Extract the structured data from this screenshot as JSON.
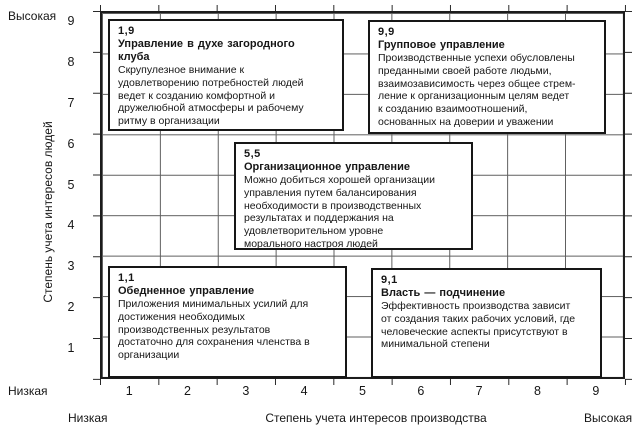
{
  "figure": {
    "type": "managerial-grid",
    "colors": {
      "ink": "#1c1c1c",
      "grid_line": "#5f5f5f",
      "background": "#ffffff"
    },
    "y_axis": {
      "high_label": "Высокая",
      "low_label": "Низкая",
      "title": "Степень учета интересов людей",
      "ticks": [
        "9",
        "8",
        "7",
        "6",
        "5",
        "4",
        "3",
        "2",
        "1"
      ]
    },
    "x_axis": {
      "low_label": "Низкая",
      "high_label": "Высокая",
      "title": "Степень учета интересов производства",
      "ticks": [
        "1",
        "2",
        "3",
        "4",
        "5",
        "6",
        "7",
        "8",
        "9"
      ]
    },
    "cells": {
      "top_left": {
        "code": "1,9",
        "title": "Управление в духе загородного\nклуба",
        "description": "Скрупулезное внимание к\nудовлетворению потребностей людей\nведет к созданию комфортной и\nдружелюбной атмосферы и рабочему\nритму в организации"
      },
      "top_right": {
        "code": "9,9",
        "title": "Групповое управление",
        "description": "Производственные успехи обусловлены\nпреданными своей работе людьми,\nвзаимозависимость через общее стрем-\nление к организационным целям ведет\nк созданию взаимоотношений,\nоснованных на доверии и уважении"
      },
      "center": {
        "code": "5,5",
        "title": "Организационное управление",
        "description": "Можно добиться хорошей организации\nуправления путем балансирования\nнеобходимости в производственных\nрезультатах и поддержания на\nудовлетворительном уровне\nморального настроя людей"
      },
      "bottom_left": {
        "code": "1,1",
        "title": "Обедненное управление",
        "description": "Приложения минимальных усилий для\nдостижения необходимых\nпроизводственных результатов\nдостаточно для сохранения членства в\nорганизации"
      },
      "bottom_right": {
        "code": "9,1",
        "title": "Власть — подчинение",
        "description": "Эффективность производства зависит\nот создания таких рабочих условий, где\nчеловеческие аспекты присутствуют в\nминимальной степени"
      }
    }
  }
}
